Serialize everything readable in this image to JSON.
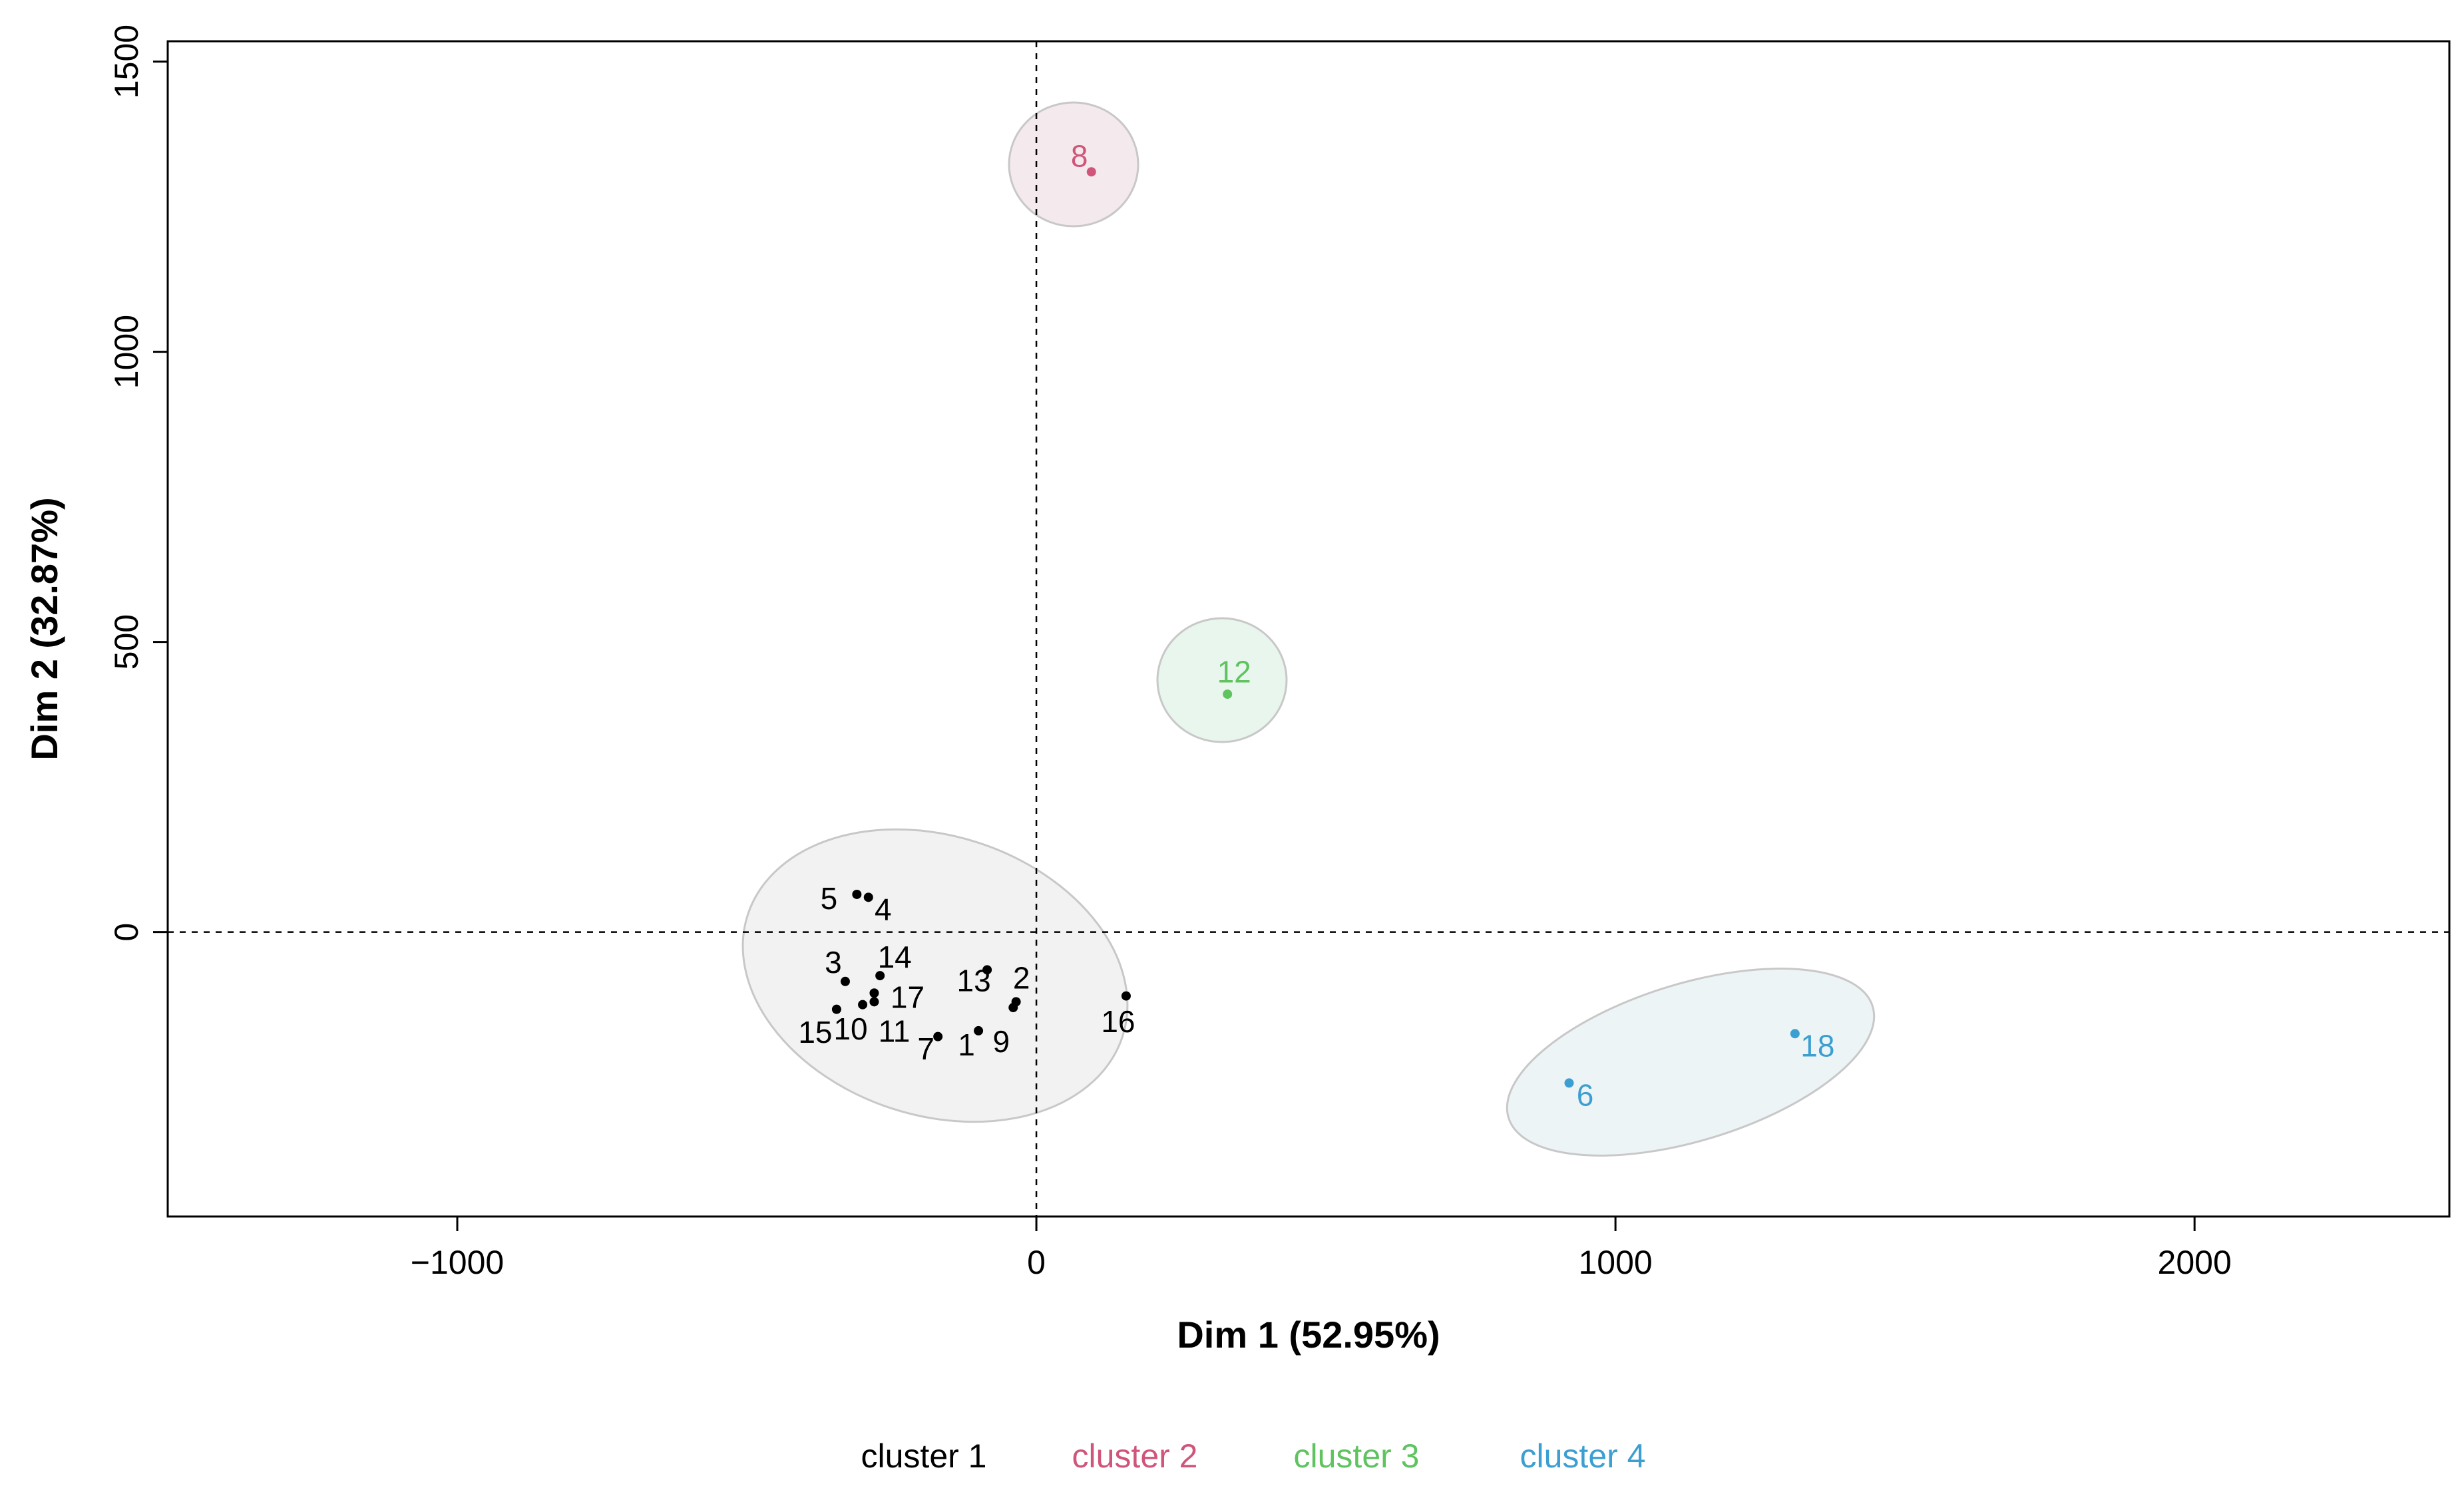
{
  "chart_data": {
    "type": "scatter",
    "xlabel": "Dim 1 (52.95%)",
    "ylabel": "Dim 2 (32.87%)",
    "xlim": [
      -1500,
      2440
    ],
    "ylim": [
      -490,
      1535
    ],
    "xticks": [
      -1000,
      0,
      1000,
      2000
    ],
    "xtick_labels": [
      "−1000",
      "0",
      "1000",
      "2000"
    ],
    "yticks": [
      0,
      500,
      1000,
      1500
    ],
    "ytick_labels": [
      "0",
      "500",
      "1000",
      "1500"
    ],
    "reference_lines": {
      "x": 0,
      "y": 0
    },
    "grid": false,
    "legend_position": "bottom",
    "series": [
      {
        "name": "cluster 1",
        "color": "#000000",
        "ellipse_fill": "#f2f2f2",
        "points": [
          {
            "label": "1",
            "x": -100,
            "y": -170
          },
          {
            "label": "2",
            "x": -35,
            "y": -120
          },
          {
            "label": "3",
            "x": -330,
            "y": -85
          },
          {
            "label": "4",
            "x": -290,
            "y": 60
          },
          {
            "label": "5",
            "x": -310,
            "y": 65
          },
          {
            "label": "7",
            "x": -170,
            "y": -180
          },
          {
            "label": "9",
            "x": -40,
            "y": -130
          },
          {
            "label": "10",
            "x": -300,
            "y": -125
          },
          {
            "label": "11",
            "x": -280,
            "y": -120
          },
          {
            "label": "13",
            "x": -85,
            "y": -65
          },
          {
            "label": "14",
            "x": -270,
            "y": -75
          },
          {
            "label": "15",
            "x": -345,
            "y": -133
          },
          {
            "label": "16",
            "x": 155,
            "y": -110
          },
          {
            "label": "17",
            "x": -280,
            "y": -105
          }
        ]
      },
      {
        "name": "cluster 2",
        "color": "#d0557a",
        "ellipse_fill": "#f4e9ed",
        "points": [
          {
            "label": "8",
            "x": 95,
            "y": 1310
          }
        ]
      },
      {
        "name": "cluster 3",
        "color": "#5fc35f",
        "ellipse_fill": "#e8f6ee",
        "points": [
          {
            "label": "12",
            "x": 330,
            "y": 410
          }
        ]
      },
      {
        "name": "cluster 4",
        "color": "#3c9fd1",
        "ellipse_fill": "#edf4f6",
        "points": [
          {
            "label": "6",
            "x": 920,
            "y": -260
          },
          {
            "label": "18",
            "x": 1310,
            "y": -175
          }
        ]
      }
    ]
  }
}
